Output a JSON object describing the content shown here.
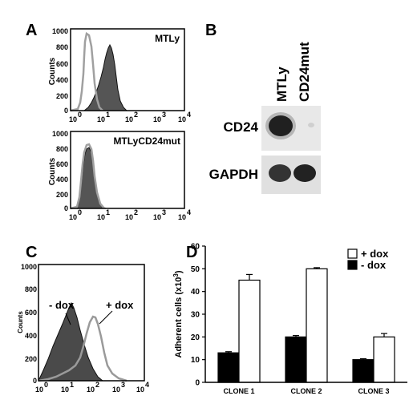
{
  "panels": {
    "a": "A",
    "b": "B",
    "c": "C",
    "d": "D"
  },
  "panel_a": {
    "top": {
      "label": "MTLy",
      "ylabel": "Counts",
      "yticks": [
        "1000",
        "800",
        "600",
        "400",
        "200",
        "0"
      ],
      "xticks": [
        "10",
        "10",
        "10",
        "10",
        "10"
      ],
      "xexp": [
        "0",
        "1",
        "2",
        "3",
        "4"
      ]
    },
    "bottom": {
      "label": "MTLyCD24mut",
      "ylabel": "Counts",
      "yticks": [
        "1000",
        "800",
        "600",
        "400",
        "200",
        "0"
      ],
      "xticks": [
        "10",
        "10",
        "10",
        "10",
        "10"
      ],
      "xexp": [
        "0",
        "1",
        "2",
        "3",
        "4"
      ]
    }
  },
  "panel_b": {
    "lanes": [
      "MTLy",
      "CD24mut"
    ],
    "rows": [
      "CD24",
      "GAPDH"
    ]
  },
  "panel_c": {
    "ylabel": "Counts",
    "yticks": [
      "1000",
      "800",
      "600",
      "400",
      "200",
      "0"
    ],
    "xticks": [
      "10",
      "10",
      "10",
      "10",
      "10"
    ],
    "xexp": [
      "0",
      "1",
      "2",
      "3",
      "4"
    ],
    "annotations": {
      "minus": "- dox",
      "plus": "+ dox"
    }
  },
  "chart_data": {
    "type": "bar",
    "categories": [
      "CLONE 1",
      "CLONE 2",
      "CLONE 3"
    ],
    "series": [
      {
        "name": "- dox",
        "values": [
          13,
          20,
          10
        ],
        "errors": [
          0.5,
          0.6,
          0.4
        ],
        "color": "#000000"
      },
      {
        "name": "+ dox",
        "values": [
          45,
          50,
          20
        ],
        "errors": [
          2.5,
          0.5,
          1.5
        ],
        "color": "#ffffff"
      }
    ],
    "ylabel_main": "Adherent cells (x10",
    "ylabel_exp": "3",
    "ylabel_tail": ")",
    "ylim": [
      0,
      60
    ],
    "yticks": [
      0,
      10,
      20,
      30,
      40,
      50,
      60
    ],
    "legend_position": "top-right",
    "legend": [
      "+ dox",
      "- dox"
    ]
  }
}
